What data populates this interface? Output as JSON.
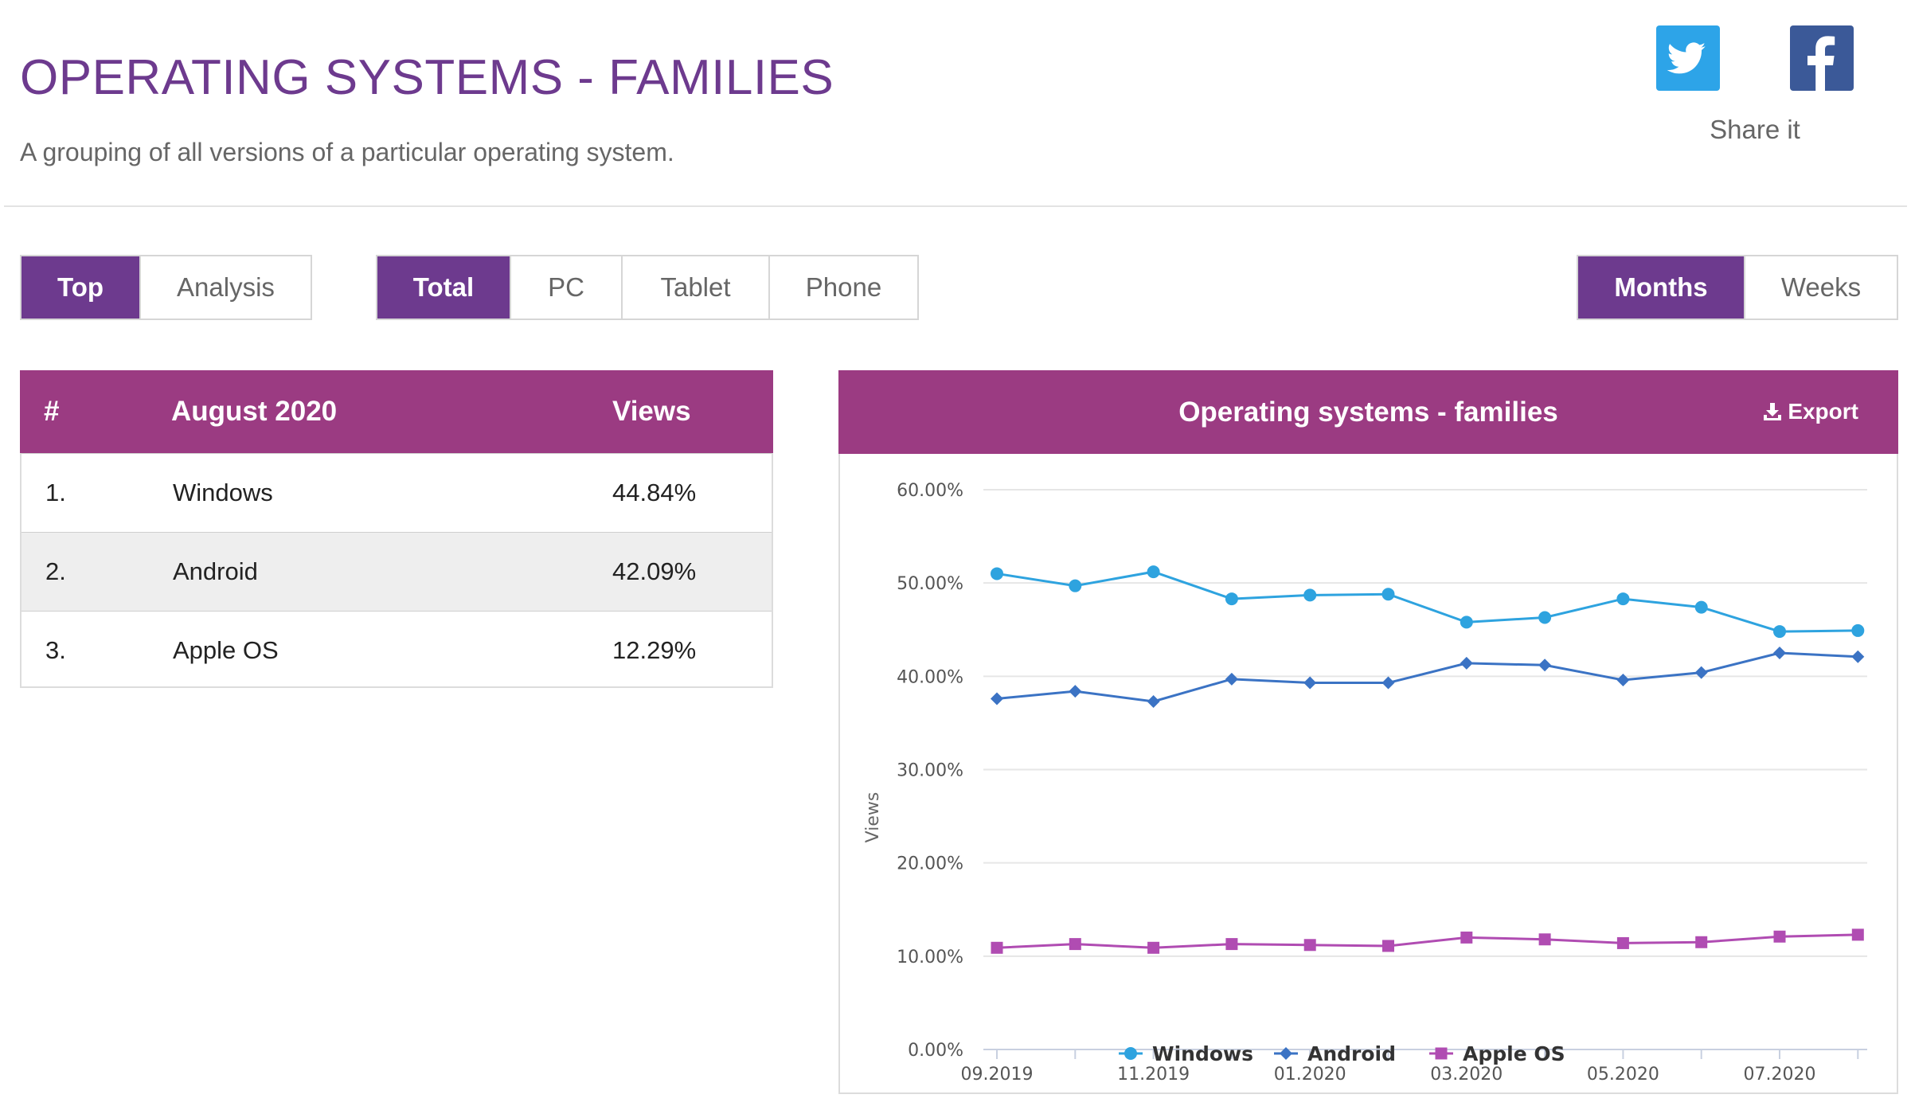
{
  "header": {
    "title": "OPERATING SYSTEMS - FAMILIES",
    "subtitle": "A grouping of all versions of a particular operating system."
  },
  "share": {
    "label": "Share it",
    "twitter_icon": "twitter-icon",
    "facebook_icon": "facebook-icon",
    "twitter_color": "#2da4e8",
    "facebook_color": "#3b5998"
  },
  "mode_tabs": [
    {
      "label": "Top",
      "active": true
    },
    {
      "label": "Analysis",
      "active": false
    }
  ],
  "device_tabs": [
    {
      "label": "Total",
      "active": true
    },
    {
      "label": "PC",
      "active": false
    },
    {
      "label": "Tablet",
      "active": false
    },
    {
      "label": "Phone",
      "active": false
    }
  ],
  "period_tabs": [
    {
      "label": "Months",
      "active": true
    },
    {
      "label": "Weeks",
      "active": false
    }
  ],
  "table": {
    "headers": {
      "rank": "#",
      "period": "August 2020",
      "views": "Views"
    },
    "rows": [
      {
        "rank": "1.",
        "name": "Windows",
        "views": "44.84%"
      },
      {
        "rank": "2.",
        "name": "Android",
        "views": "42.09%"
      },
      {
        "rank": "3.",
        "name": "Apple OS",
        "views": "12.29%"
      }
    ]
  },
  "chart_panel": {
    "title": "Operating systems - families",
    "export_label": "Export",
    "export_icon": "download-icon"
  },
  "colors": {
    "accent": "#6d3a8e",
    "header_bg": "#9b3b82",
    "windows": "#2ea3df",
    "android": "#3b73c4",
    "apple": "#b04cb2"
  },
  "chart_data": {
    "type": "line",
    "title": "",
    "xlabel": "",
    "ylabel": "Views",
    "x": [
      "09.2019",
      "10.2019",
      "11.2019",
      "12.2019",
      "01.2020",
      "02.2020",
      "03.2020",
      "04.2020",
      "05.2020",
      "06.2020",
      "07.2020",
      "08.2020"
    ],
    "x_tick_labels": [
      "09.2019",
      "11.2019",
      "01.2020",
      "03.2020",
      "05.2020",
      "07.2020"
    ],
    "ylim": [
      0,
      60
    ],
    "y_ticks": [
      0,
      10,
      20,
      30,
      40,
      50,
      60
    ],
    "y_tick_labels": [
      "0.00%",
      "10.00%",
      "20.00%",
      "30.00%",
      "40.00%",
      "50.00%",
      "60.00%"
    ],
    "grid": true,
    "legend_position": "bottom",
    "series": [
      {
        "name": "Windows",
        "marker": "circle",
        "values": [
          51.0,
          49.7,
          51.2,
          48.3,
          48.7,
          48.8,
          45.8,
          46.3,
          48.3,
          47.4,
          44.8,
          44.9
        ]
      },
      {
        "name": "Android",
        "marker": "diamond",
        "values": [
          37.6,
          38.4,
          37.3,
          39.7,
          39.3,
          39.3,
          41.4,
          41.2,
          39.6,
          40.4,
          42.5,
          42.1
        ]
      },
      {
        "name": "Apple OS",
        "marker": "square",
        "values": [
          10.9,
          11.3,
          10.9,
          11.3,
          11.2,
          11.1,
          12.0,
          11.8,
          11.4,
          11.5,
          12.1,
          12.3
        ]
      }
    ]
  }
}
